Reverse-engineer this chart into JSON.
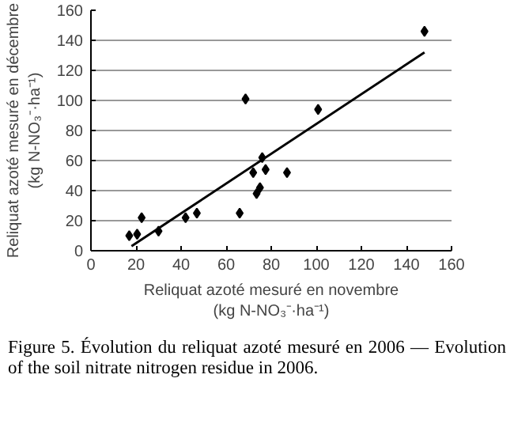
{
  "chart_data": {
    "type": "scatter",
    "xlabel": "Reliquat azoté mesuré en novembre (kg N-NO₃⁻·ha⁻¹)",
    "ylabel": "Reliquat azoté mesuré en décembre (kg N-NO₃⁻·ha⁻¹)",
    "annotations": [
      "Figure 5. Évolution du reliquat azoté mesuré en 2006 — Evolution of the soil nitrate nitrogen residue in 2006."
    ],
    "x": [
      17,
      20.5,
      22.5,
      30,
      42,
      47,
      66,
      68.6,
      72,
      73.5,
      75,
      76,
      77.5,
      87,
      100.8,
      148
    ],
    "series": [
      {
        "color": "#000000",
        "marker": "diamond",
        "values": [
          10,
          11,
          22,
          13,
          22,
          25,
          25,
          101,
          52,
          38,
          42,
          62,
          54,
          52,
          94,
          146
        ]
      },
      {
        "type": "line",
        "color": "#000000",
        "marker": "none",
        "x": [
          18,
          148
        ],
        "values": [
          3,
          132
        ]
      }
    ],
    "xlim": [
      0,
      160
    ],
    "xticks": [
      0,
      20,
      40,
      60,
      80,
      100,
      120,
      140,
      160
    ],
    "ylim": [
      0,
      160
    ],
    "yticks": [
      0,
      20,
      40,
      60,
      80,
      100,
      120,
      140,
      160
    ],
    "grid": "y"
  }
}
